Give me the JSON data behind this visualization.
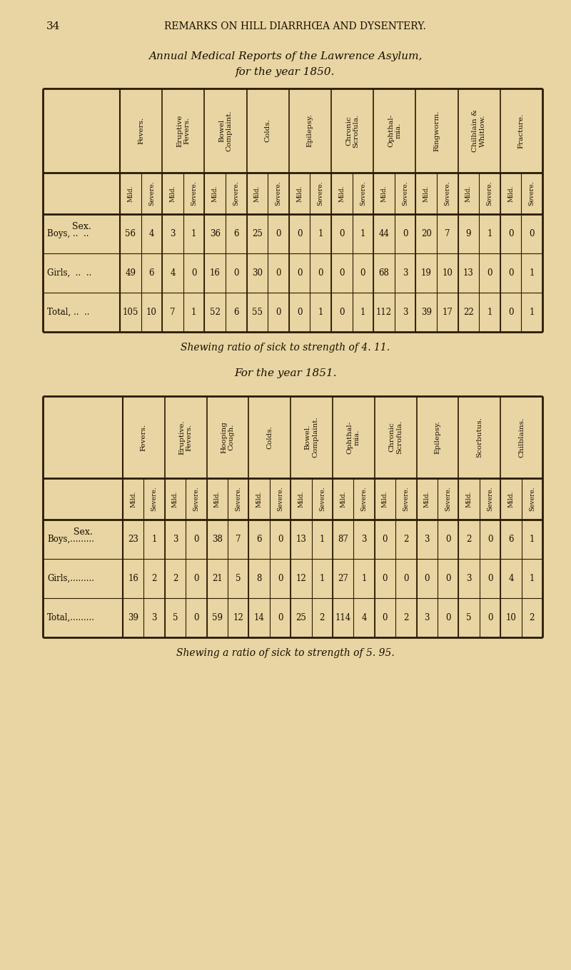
{
  "page_header_num": "34",
  "page_header_text": "REMARKS ON HILL DIARRHŒA AND DYSENTERY.",
  "title1_line1": "Annual Medical Reports of the Lawrence Asylum,",
  "title1_line2": "for the year 1850.",
  "title2_line1": "For the year 1851.",
  "footer1": "Shewing ratio of sick to strength of 4. 11.",
  "footer2": "Shewing a ratio of sick to strength of 5. 95.",
  "bg_color": "#e8d5a3",
  "line_color": "#2a1a00",
  "text_color": "#1a0e00",
  "table1": {
    "group_defs": [
      {
        "name": "Fevers.",
        "ncols": 2
      },
      {
        "name": "Eruptive\nFevers.",
        "ncols": 2
      },
      {
        "name": "Bowel\nComplaint.",
        "ncols": 2
      },
      {
        "name": "Colds.",
        "ncols": 2
      },
      {
        "name": "Epilepsy.",
        "ncols": 2
      },
      {
        "name": "Chronic\nScrofula.",
        "ncols": 2
      },
      {
        "name": "Ophthal-\nmia.",
        "ncols": 2
      },
      {
        "name": "Ringworm.",
        "ncols": 2
      },
      {
        "name": "Chilblain &\nWhitlow.",
        "ncols": 2
      },
      {
        "name": "Fracture.",
        "ncols": 2
      }
    ],
    "subheaders": [
      "Mild.",
      "Severe.",
      "Mild.",
      "Severe.",
      "Mild.",
      "Severe.",
      "Mild.",
      "Severe.",
      "Mild.",
      "Severe.",
      "Mild.",
      "Severe.",
      "Mild.",
      "Severe.",
      "Mild.",
      "Severe.",
      "Mild.",
      "Severe.",
      "Mild.",
      "Severe."
    ],
    "rows": [
      {
        "label": "Boys, ..  ..",
        "values": [
          "56",
          "4",
          "3",
          "1",
          "36",
          "6",
          "25",
          "0",
          "0",
          "1",
          "0",
          "1",
          "44",
          "0",
          "20",
          "7",
          "9",
          "1",
          "0",
          "0"
        ]
      },
      {
        "label": "Girls,  ..  ..",
        "values": [
          "49",
          "6",
          "4",
          "0",
          "16",
          "0",
          "30",
          "0",
          "0",
          "0",
          "0",
          "0",
          "68",
          "3",
          "19",
          "10",
          "13",
          "0",
          "0",
          "1"
        ]
      },
      {
        "label": "Total, ..  ..",
        "values": [
          "105",
          "10",
          "7",
          "1",
          "52",
          "6",
          "55",
          "0",
          "0",
          "1",
          "0",
          "1",
          "112",
          "3",
          "39",
          "17",
          "22",
          "1",
          "0",
          "1"
        ]
      }
    ]
  },
  "table2": {
    "group_defs": [
      {
        "name": "Fevers.",
        "ncols": 2
      },
      {
        "name": "Eruptive.\nFevers.",
        "ncols": 2
      },
      {
        "name": "Hooping\nCough.",
        "ncols": 2
      },
      {
        "name": "Colds.",
        "ncols": 2
      },
      {
        "name": "Bowel.\nComplaint.",
        "ncols": 2
      },
      {
        "name": "Ophthal-\nmia.",
        "ncols": 2
      },
      {
        "name": "Chronic\nScrofula.",
        "ncols": 2
      },
      {
        "name": "Epilepsy.",
        "ncols": 2
      },
      {
        "name": "Scorbutus.",
        "ncols": 2
      },
      {
        "name": "Chilblains.",
        "ncols": 2
      }
    ],
    "subheaders": [
      "Mild.",
      "Severe.",
      "Mild.",
      "Severe.",
      "Mild.",
      "Severe.",
      "Mild.",
      "Severe.",
      "Mild.",
      "Severe.",
      "Mild.",
      "Severe.",
      "Mild.",
      "Severe.",
      "Mild.",
      "Severe.",
      "Mild.",
      "Severe.",
      "Mild.",
      "Severe."
    ],
    "rows": [
      {
        "label": "Boys,.........",
        "values": [
          "23",
          "1",
          "3",
          "0",
          "38",
          "7",
          "6",
          "0",
          "13",
          "1",
          "87",
          "3",
          "0",
          "2",
          "3",
          "0",
          "2",
          "0",
          "6",
          "1"
        ]
      },
      {
        "label": "Girls,.........",
        "values": [
          "16",
          "2",
          "2",
          "0",
          "21",
          "5",
          "8",
          "0",
          "12",
          "1",
          "27",
          "1",
          "0",
          "0",
          "0",
          "0",
          "3",
          "0",
          "4",
          "1"
        ]
      },
      {
        "label": "Total,.........",
        "values": [
          "39",
          "3",
          "5",
          "0",
          "59",
          "12",
          "14",
          "0",
          "25",
          "2",
          "114",
          "4",
          "0",
          "2",
          "3",
          "0",
          "5",
          "0",
          "10",
          "2"
        ]
      }
    ]
  }
}
